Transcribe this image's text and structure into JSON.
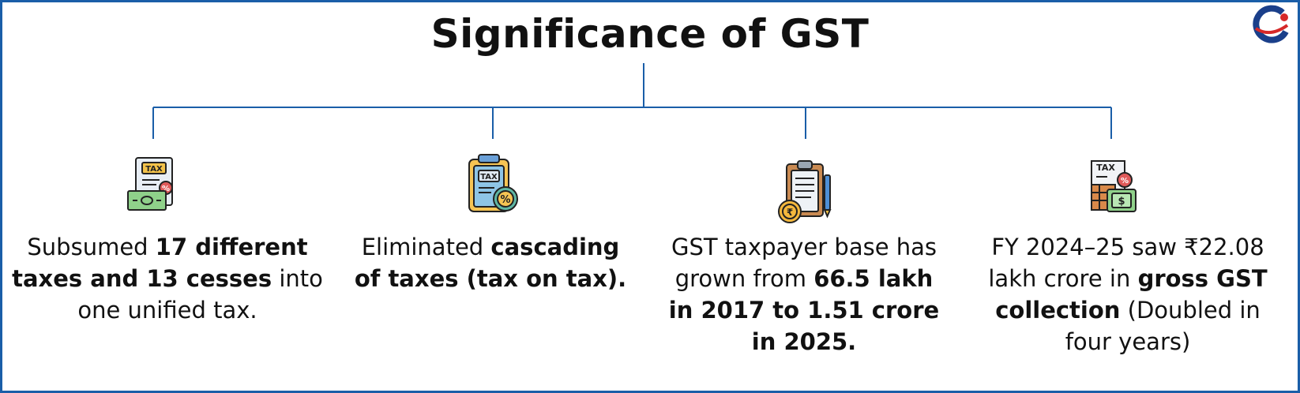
{
  "title": "Significance of GST",
  "colors": {
    "frame": "#1a5ea8",
    "connector": "#1a5ea8",
    "text": "#111111"
  },
  "logo": {
    "icon": "brand-globe-logo-icon"
  },
  "items": [
    {
      "icon": "tax-document-money-icon",
      "parts": [
        {
          "text": "Subsumed ",
          "bold": false
        },
        {
          "text": "17 different taxes and 13 cesses",
          "bold": true
        },
        {
          "text": " into one unified tax.",
          "bold": false
        }
      ]
    },
    {
      "icon": "tax-clipboard-percent-icon",
      "parts": [
        {
          "text": "Eliminated ",
          "bold": false
        },
        {
          "text": "cascading of taxes (tax on tax).",
          "bold": true
        }
      ]
    },
    {
      "icon": "clipboard-pen-rupee-coin-icon",
      "parts": [
        {
          "text": "GST taxpayer base has grown from ",
          "bold": false
        },
        {
          "text": "66.5 lakh in 2017 to 1.51 crore in 2025.",
          "bold": true
        }
      ]
    },
    {
      "icon": "tax-receipt-dollar-icon",
      "parts": [
        {
          "text": "FY 2024–25 saw ₹22.08 lakh crore in ",
          "bold": false
        },
        {
          "text": "gross GST collection",
          "bold": true
        },
        {
          "text": " (Doubled in four years)",
          "bold": false
        }
      ]
    }
  ]
}
